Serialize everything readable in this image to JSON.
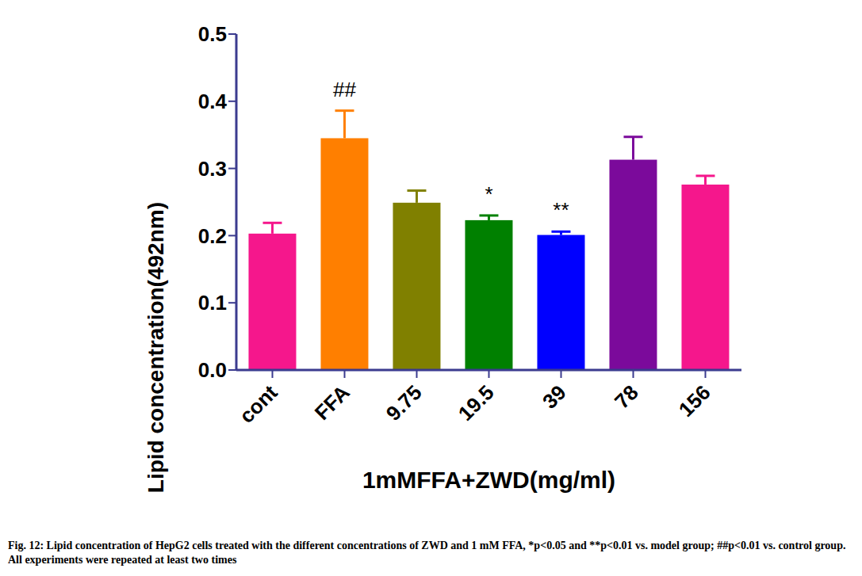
{
  "chart_data": {
    "type": "bar",
    "categories": [
      "cont",
      "FFA",
      "9.75",
      "19.5",
      "39",
      "78",
      "156"
    ],
    "values": [
      0.203,
      0.345,
      0.249,
      0.223,
      0.201,
      0.313,
      0.276
    ],
    "errors": [
      0.016,
      0.041,
      0.018,
      0.007,
      0.005,
      0.034,
      0.013
    ],
    "colors": [
      "#f5178c",
      "#ff7f00",
      "#808000",
      "#008000",
      "#0000ff",
      "#7b0a9b",
      "#f5178c"
    ],
    "annotations": [
      null,
      "##",
      null,
      "*",
      "**",
      null,
      null
    ],
    "ylim": [
      0,
      0.5
    ],
    "yticks": [
      {
        "value": 0,
        "label": "0.0"
      },
      0.1,
      0.2,
      0.3,
      0.4,
      0.5
    ],
    "y_label": "Lipid concentration(492nm)",
    "x_label": "1mMFFA+ZWD(mg/ml)",
    "caption": "Fig. 12: Lipid concentration of HepG2 cells treated with the different concentrations of ZWD and 1 mM FFA, *p<0.05 and **p<0.01 vs. model group; ##p<0.01 vs. control group. All experiments were repeated at least two times"
  }
}
